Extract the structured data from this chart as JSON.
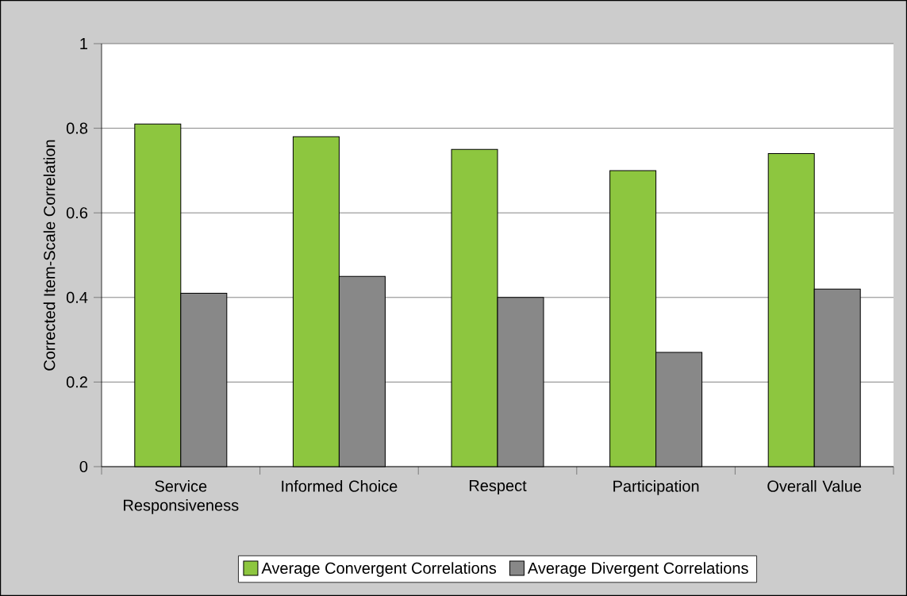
{
  "chart_data": {
    "type": "bar",
    "ylabel": "Corrected Item-Scale Correlation",
    "categories": [
      "Service Responsiveness",
      "Informed Choice",
      "Respect",
      "Participation",
      "Overall Value"
    ],
    "series": [
      {
        "name": "Average Convergent Correlations",
        "color": "#8dc63f",
        "values": [
          0.81,
          0.78,
          0.75,
          0.7,
          0.74
        ]
      },
      {
        "name": "Average Divergent Correlations",
        "color": "#888888",
        "values": [
          0.41,
          0.45,
          0.4,
          0.27,
          0.42
        ]
      }
    ],
    "ylim": [
      0,
      1
    ],
    "yticks": [
      0,
      0.2,
      0.4,
      0.6,
      0.8,
      1
    ],
    "grid": "y",
    "legend": "bottom"
  }
}
